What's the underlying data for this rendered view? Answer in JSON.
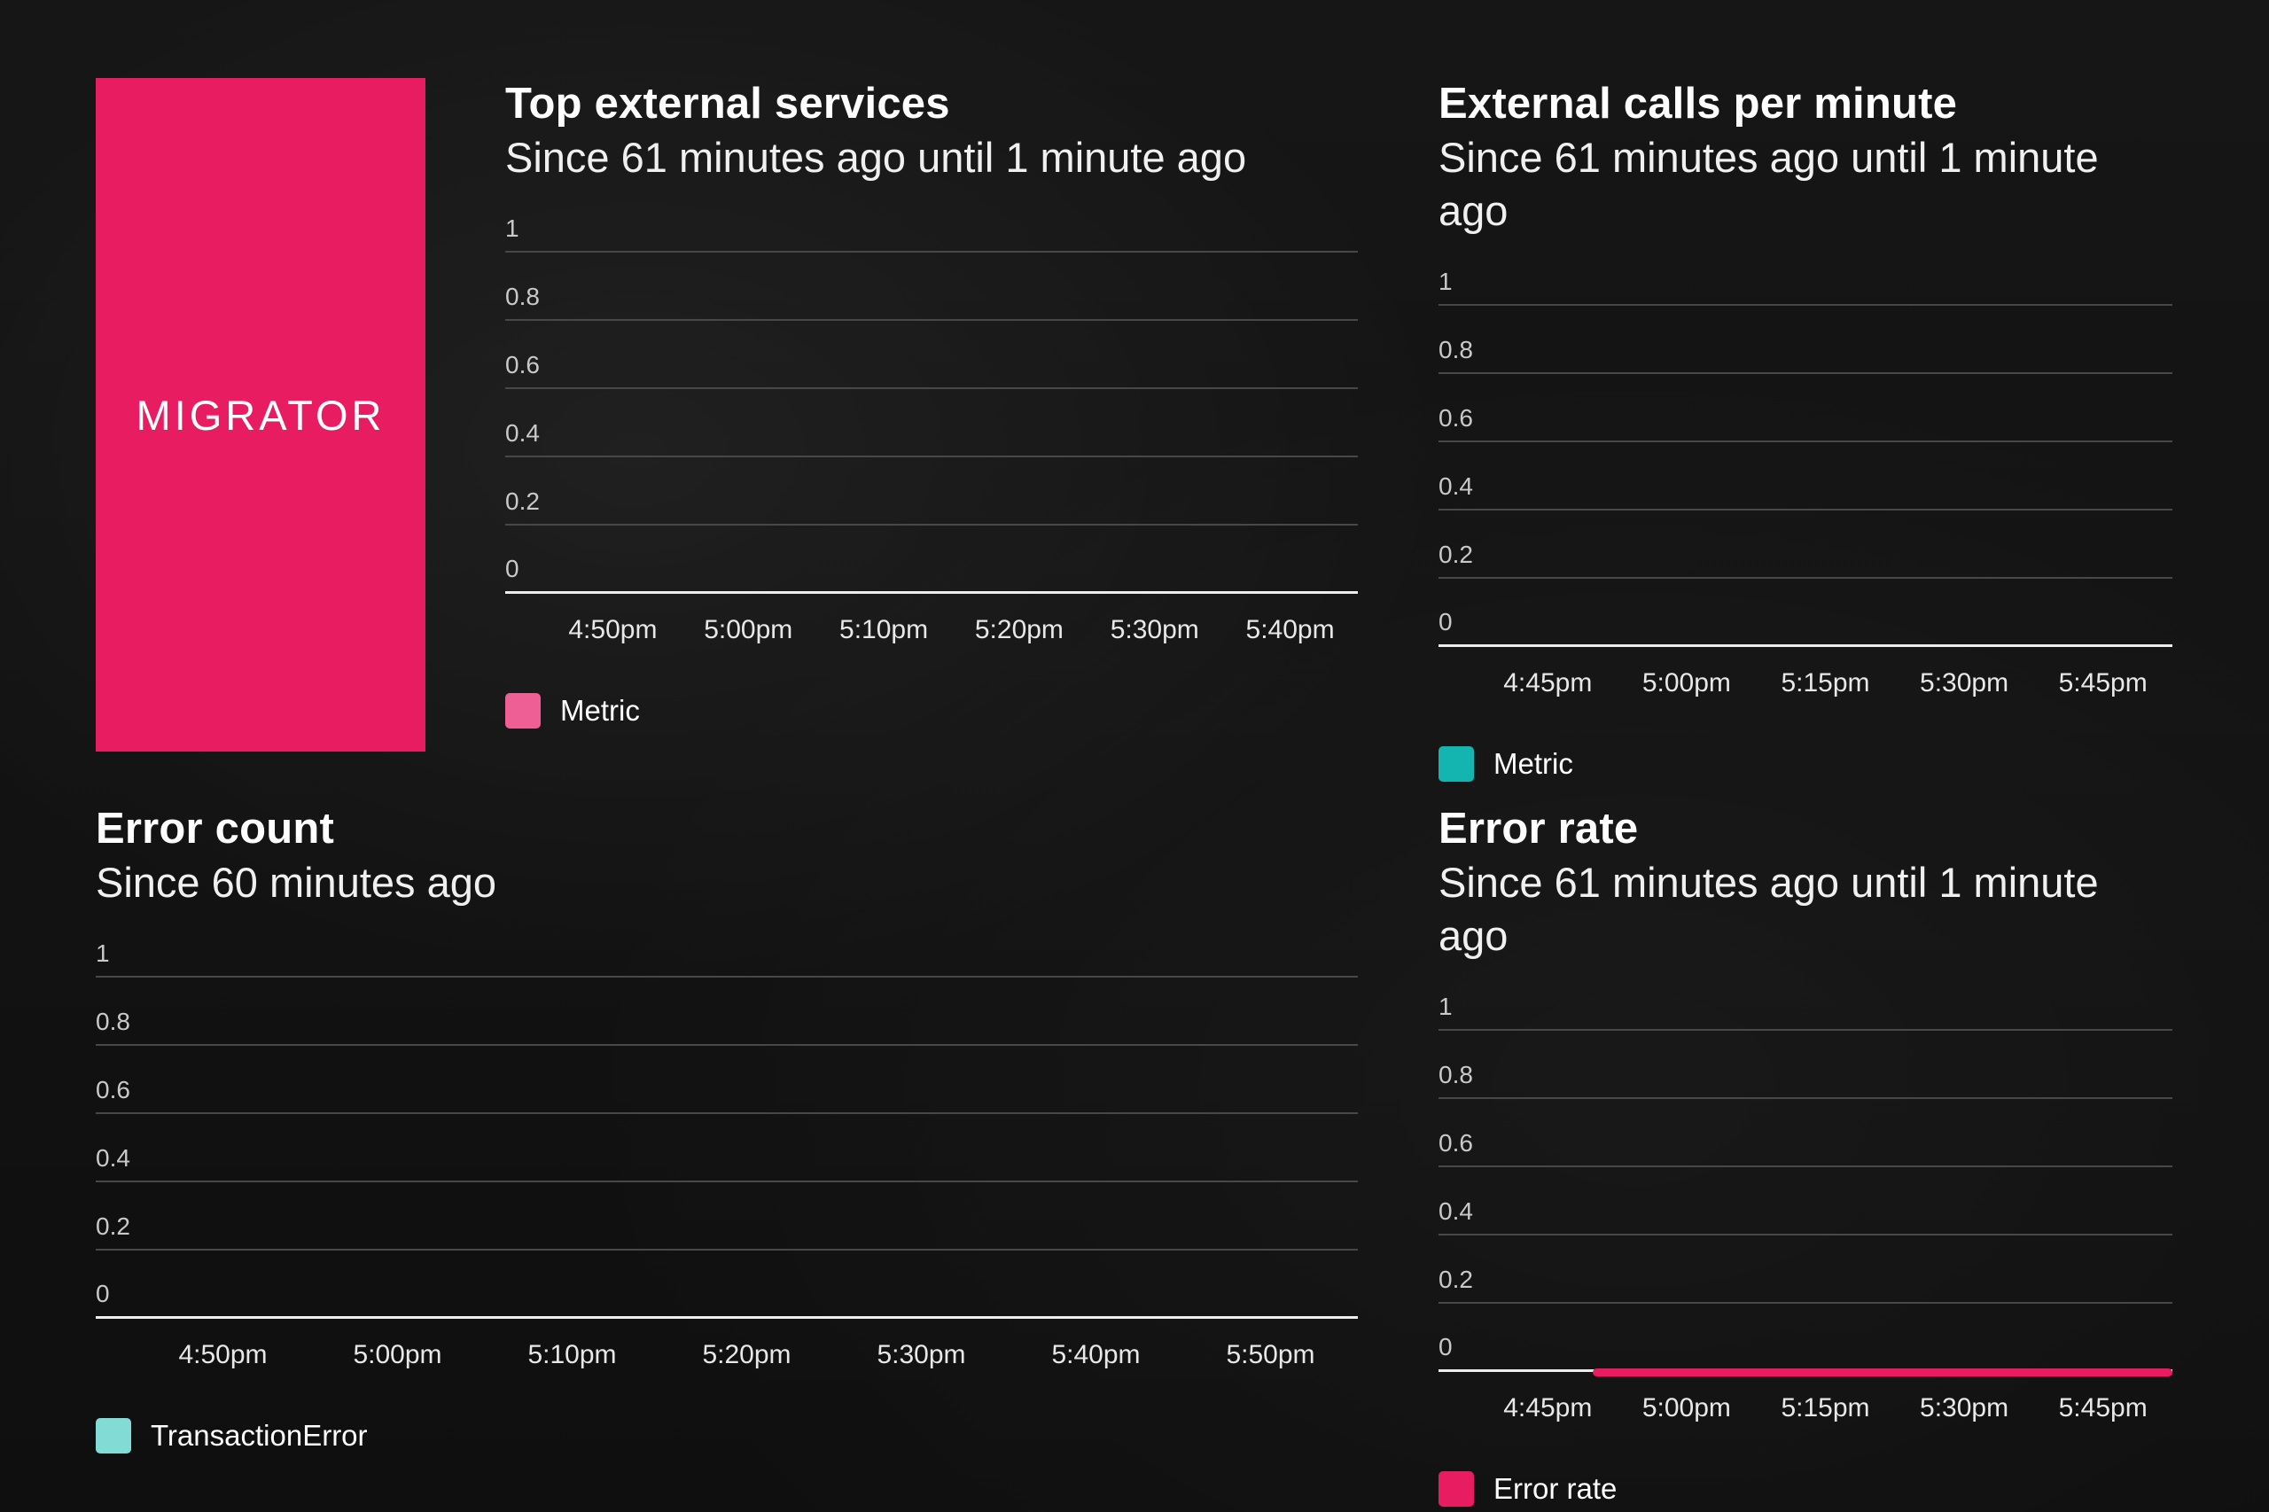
{
  "page": {
    "background": "#131313"
  },
  "brand": {
    "label": "MIGRATOR",
    "color": "#e81c61"
  },
  "chart_data": [
    {
      "type": "line",
      "title": "Top external services",
      "subtitle": "Since 61 minutes ago until 1 minute ago",
      "ylim": [
        0,
        1
      ],
      "y_ticks": [
        1,
        0.8,
        0.6,
        0.4,
        0.2,
        0
      ],
      "x_ticks": [
        "4:50pm",
        "5:00pm",
        "5:10pm",
        "5:20pm",
        "5:30pm",
        "5:40pm"
      ],
      "grid": true,
      "legend_position": "bottom-left",
      "legend": {
        "label": "Metric",
        "color": "#ee5f95"
      },
      "series": []
    },
    {
      "type": "line",
      "title": "External calls per minute",
      "subtitle": "Since 61 minutes ago until 1 minute ago",
      "ylim": [
        0,
        1
      ],
      "y_ticks": [
        1,
        0.8,
        0.6,
        0.4,
        0.2,
        0
      ],
      "x_ticks": [
        "4:45pm",
        "5:00pm",
        "5:15pm",
        "5:30pm",
        "5:45pm"
      ],
      "grid": true,
      "legend_position": "bottom-left",
      "legend": {
        "label": "Metric",
        "color": "#14b5b0"
      },
      "series": []
    },
    {
      "type": "line",
      "title": "Error count",
      "subtitle": "Since 60 minutes ago",
      "ylim": [
        0,
        1
      ],
      "y_ticks": [
        1,
        0.8,
        0.6,
        0.4,
        0.2,
        0
      ],
      "x_ticks": [
        "4:50pm",
        "5:00pm",
        "5:10pm",
        "5:20pm",
        "5:30pm",
        "5:40pm",
        "5:50pm"
      ],
      "grid": true,
      "legend_position": "bottom-left",
      "legend": {
        "label": "TransactionError",
        "color": "#82dbd4"
      },
      "series": []
    },
    {
      "type": "line",
      "title": "Error rate",
      "subtitle": "Since 61 minutes ago until 1 minute ago",
      "ylim": [
        0,
        1
      ],
      "y_ticks": [
        1,
        0.8,
        0.6,
        0.4,
        0.2,
        0
      ],
      "x_ticks": [
        "4:45pm",
        "5:00pm",
        "5:15pm",
        "5:30pm",
        "5:45pm"
      ],
      "grid": true,
      "legend_position": "bottom-left",
      "legend": {
        "label": "Error rate",
        "color": "#e81c61"
      },
      "series": [
        {
          "name": "Error rate",
          "color": "#e81c61",
          "y": 0,
          "x_span_percent": [
            21,
            100
          ]
        }
      ]
    }
  ]
}
